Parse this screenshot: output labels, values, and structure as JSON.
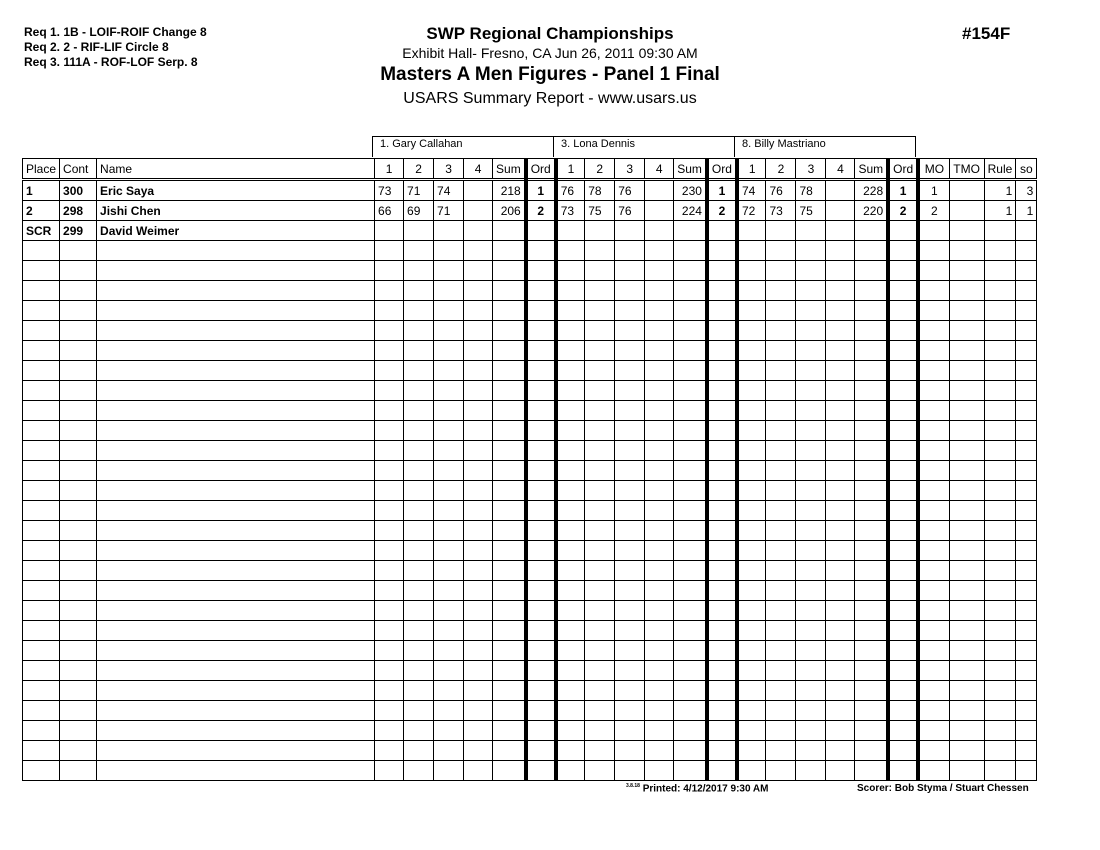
{
  "requirements": [
    "Req  1.  1B - LOIF-ROIF Change 8",
    "Req  2.  2 - RIF-LIF Circle 8",
    "Req  3.  111A - ROF-LOF Serp. 8"
  ],
  "header": {
    "title": "SWP Regional Championships",
    "location": "Exhibit Hall-  Fresno, CA  Jun 26, 2011  09:30 AM",
    "event": "Masters A Men Figures - Panel 1 Final",
    "report": "USARS Summary Report - www.usars.us",
    "event_number": "#154F"
  },
  "judges": [
    "1.  Gary Callahan",
    "3.  Lona Dennis",
    "8.  Billy Mastriano"
  ],
  "columns": {
    "place": "Place",
    "cont": "Cont",
    "name": "Name",
    "judge_cols": [
      "1",
      "2",
      "3",
      "4",
      "Sum",
      "Ord"
    ],
    "mo": "MO",
    "tmo": "TMO",
    "rule": "Rule",
    "so": "so"
  },
  "rows": [
    {
      "place": "1",
      "cont": "300",
      "name": "Eric Saya",
      "judges": [
        [
          "73",
          "71",
          "74",
          "",
          "218",
          "1"
        ],
        [
          "76",
          "78",
          "76",
          "",
          "230",
          "1"
        ],
        [
          "74",
          "76",
          "78",
          "",
          "228",
          "1"
        ]
      ],
      "mo": "1",
      "tmo": "",
      "rule": "1",
      "so": "3"
    },
    {
      "place": "2",
      "cont": "298",
      "name": "Jishi Chen",
      "judges": [
        [
          "66",
          "69",
          "71",
          "",
          "206",
          "2"
        ],
        [
          "73",
          "75",
          "76",
          "",
          "224",
          "2"
        ],
        [
          "72",
          "73",
          "75",
          "",
          "220",
          "2"
        ]
      ],
      "mo": "2",
      "tmo": "",
      "rule": "1",
      "so": "1"
    },
    {
      "place": "SCR",
      "cont": "299",
      "name": "David Weimer",
      "judges": [
        [
          "",
          "",
          "",
          "",
          "",
          ""
        ],
        [
          "",
          "",
          "",
          "",
          "",
          ""
        ],
        [
          "",
          "",
          "",
          "",
          "",
          ""
        ]
      ],
      "mo": "",
      "tmo": "",
      "rule": "",
      "so": ""
    }
  ],
  "footer": {
    "version": "3.8.18",
    "printed": "Printed:  4/12/2017  9:30 AM",
    "scorer": "Scorer:  Bob Styma / Stuart Chessen"
  }
}
